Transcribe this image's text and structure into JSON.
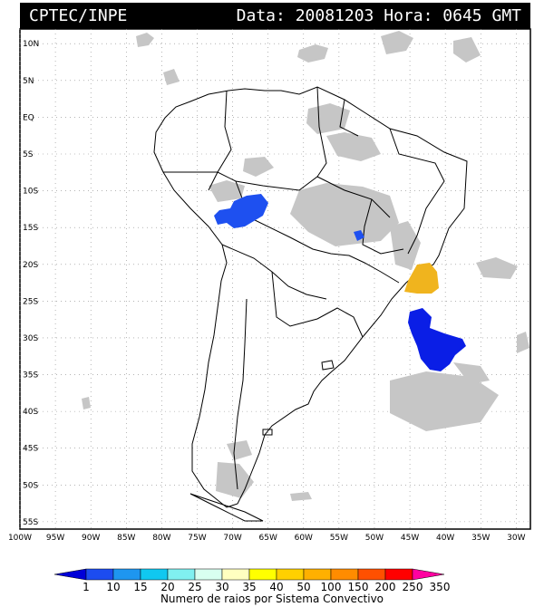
{
  "header": {
    "source": "CPTEC/INPE",
    "date_label": "Data:",
    "date_value": "20081203",
    "time_label": "Hora:",
    "time_value": "0645",
    "time_zone": "GMT"
  },
  "map": {
    "lat_labels": [
      "10N",
      "5N",
      "EQ",
      "5S",
      "10S",
      "15S",
      "20S",
      "25S",
      "30S",
      "35S",
      "40S",
      "45S",
      "50S",
      "55S"
    ],
    "lon_labels": [
      "100W",
      "95W",
      "90W",
      "85W",
      "80W",
      "75W",
      "70W",
      "65W",
      "60W",
      "55W",
      "50W",
      "45W",
      "40W",
      "35W",
      "30W"
    ],
    "lat_values": [
      10,
      5,
      0,
      -5,
      -10,
      -15,
      -20,
      -25,
      -30,
      -35,
      -40,
      -45,
      -50,
      -55
    ],
    "lon_values": [
      -100,
      -95,
      -90,
      -85,
      -80,
      -75,
      -70,
      -65,
      -60,
      -55,
      -50,
      -45,
      -40,
      -35,
      -30
    ],
    "extent": {
      "lon_min": -100,
      "lon_max": -28,
      "lat_min": -56,
      "lat_max": 12
    },
    "grid": true,
    "colors": {
      "cloud": "#c8c8c8",
      "blue_low": "#0a1ee6",
      "blue_mid": "#1e50f0",
      "orange": "#f0b41e",
      "coast": "#000000"
    }
  },
  "colorbar": {
    "tick_labels": [
      "1",
      "10",
      "15",
      "20",
      "25",
      "30",
      "35",
      "40",
      "50",
      "100",
      "150",
      "200",
      "250",
      "350"
    ],
    "colors": [
      "#0000d8",
      "#1c4cf0",
      "#1e96f0",
      "#10c8f0",
      "#80f0f0",
      "#d8fff0",
      "#ffffc0",
      "#ffff00",
      "#ffd000",
      "#ffb000",
      "#ff8c00",
      "#ff5000",
      "#ff0000",
      "#ff00a0"
    ],
    "title": "Numero de raios por Sistema Convectivo"
  }
}
